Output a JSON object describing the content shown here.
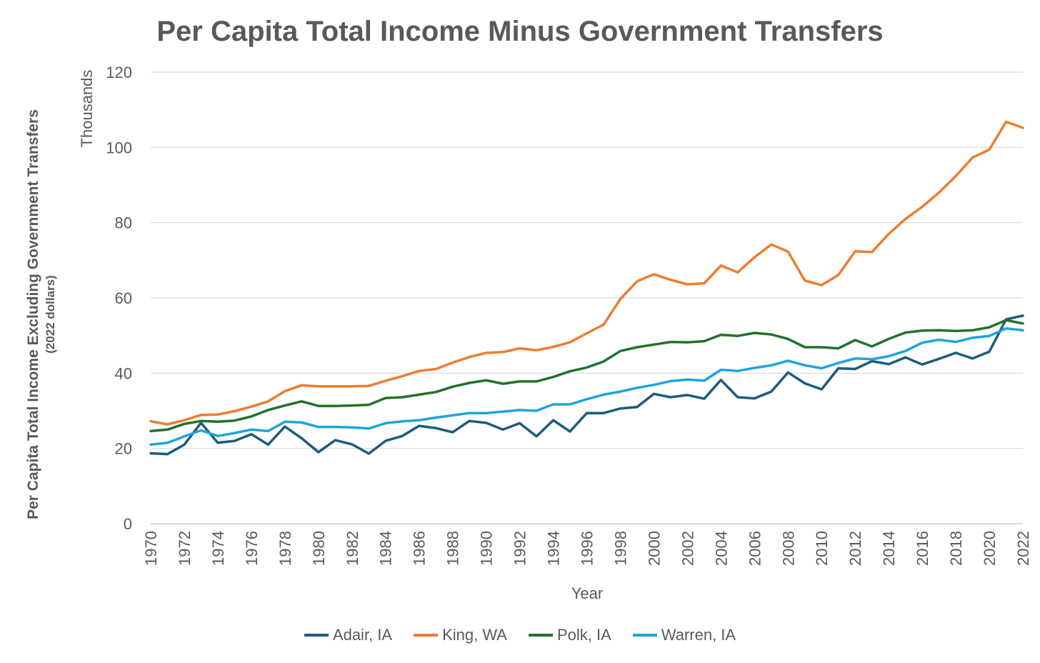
{
  "chart_data": {
    "type": "line",
    "title": "Per Capita Total Income Minus Government Transfers",
    "ylabel": "Per Capita Total Income Excluding Government Transfers",
    "ylabel_sub": "(2022 dollars)",
    "y_units": "Thousands",
    "xlabel": "Year",
    "ylim": [
      0,
      120
    ],
    "yticks": [
      0,
      20,
      40,
      60,
      80,
      100,
      120
    ],
    "xlim": [
      1970,
      2022
    ],
    "xticks": [
      1970,
      1972,
      1974,
      1976,
      1978,
      1980,
      1982,
      1984,
      1986,
      1988,
      1990,
      1992,
      1994,
      1996,
      1998,
      2000,
      2002,
      2004,
      2006,
      2008,
      2010,
      2012,
      2014,
      2016,
      2018,
      2020,
      2022
    ],
    "grid": true,
    "legend_position": "bottom",
    "x": [
      1970,
      1971,
      1972,
      1973,
      1974,
      1975,
      1976,
      1977,
      1978,
      1979,
      1980,
      1981,
      1982,
      1983,
      1984,
      1985,
      1986,
      1987,
      1988,
      1989,
      1990,
      1991,
      1992,
      1993,
      1994,
      1995,
      1996,
      1997,
      1998,
      1999,
      2000,
      2001,
      2002,
      2003,
      2004,
      2005,
      2006,
      2007,
      2008,
      2009,
      2010,
      2011,
      2012,
      2013,
      2014,
      2015,
      2016,
      2017,
      2018,
      2019,
      2020,
      2021,
      2022
    ],
    "series": [
      {
        "name": "Adair, IA",
        "color": "#1f5b7a",
        "values": [
          18.7,
          18.5,
          21.0,
          26.8,
          21.5,
          22.0,
          23.8,
          21.0,
          25.8,
          22.7,
          19.0,
          22.2,
          21.1,
          18.6,
          22.0,
          23.3,
          26.0,
          25.4,
          24.3,
          27.3,
          26.8,
          25.0,
          26.7,
          23.2,
          27.5,
          24.5,
          29.4,
          29.4,
          30.6,
          31.0,
          34.5,
          33.6,
          34.2,
          33.2,
          38.2,
          33.6,
          33.3,
          35.1,
          40.2,
          37.3,
          35.7,
          41.3,
          41.1,
          43.2,
          42.4,
          44.2,
          42.3,
          43.8,
          45.4,
          43.9,
          45.7,
          54.3,
          55.3
        ]
      },
      {
        "name": "King, WA",
        "color": "#ed7d31",
        "values": [
          27.2,
          26.4,
          27.5,
          28.9,
          29.0,
          29.9,
          31.1,
          32.5,
          35.2,
          36.8,
          36.5,
          36.5,
          36.5,
          36.6,
          38.0,
          39.2,
          40.6,
          41.1,
          42.8,
          44.3,
          45.4,
          45.6,
          46.6,
          46.1,
          47.0,
          48.2,
          50.6,
          52.9,
          59.7,
          64.4,
          66.3,
          64.8,
          63.6,
          63.9,
          68.6,
          66.8,
          70.8,
          74.2,
          72.3,
          64.6,
          63.4,
          66.1,
          72.4,
          72.2,
          77.0,
          81.0,
          84.2,
          88.0,
          92.4,
          97.3,
          99.4,
          106.8,
          105.2
        ]
      },
      {
        "name": "Polk, IA",
        "color": "#21712d",
        "values": [
          24.6,
          25.0,
          26.5,
          27.3,
          27.1,
          27.4,
          28.5,
          30.2,
          31.4,
          32.5,
          31.3,
          31.3,
          31.4,
          31.6,
          33.4,
          33.6,
          34.3,
          35.0,
          36.4,
          37.4,
          38.1,
          37.2,
          37.8,
          37.8,
          39.0,
          40.5,
          41.5,
          43.1,
          45.9,
          46.9,
          47.6,
          48.3,
          48.2,
          48.5,
          50.2,
          49.9,
          50.7,
          50.3,
          49.1,
          46.9,
          46.9,
          46.6,
          48.8,
          47.1,
          49.1,
          50.8,
          51.3,
          51.4,
          51.2,
          51.4,
          52.2,
          54.1,
          53.2
        ]
      },
      {
        "name": "Warren, IA",
        "color": "#20a3dd",
        "values": [
          21.0,
          21.5,
          23.2,
          24.8,
          23.3,
          24.1,
          25.0,
          24.6,
          27.1,
          26.9,
          25.7,
          25.7,
          25.6,
          25.3,
          26.7,
          27.2,
          27.5,
          28.2,
          28.8,
          29.4,
          29.4,
          29.8,
          30.2,
          30.0,
          31.7,
          31.7,
          33.1,
          34.3,
          35.1,
          36.1,
          36.9,
          37.9,
          38.3,
          38.0,
          40.9,
          40.6,
          41.4,
          42.1,
          43.3,
          42.1,
          41.3,
          42.7,
          43.9,
          43.7,
          44.5,
          45.9,
          48.1,
          48.9,
          48.3,
          49.4,
          49.9,
          51.9,
          51.4
        ]
      }
    ]
  }
}
